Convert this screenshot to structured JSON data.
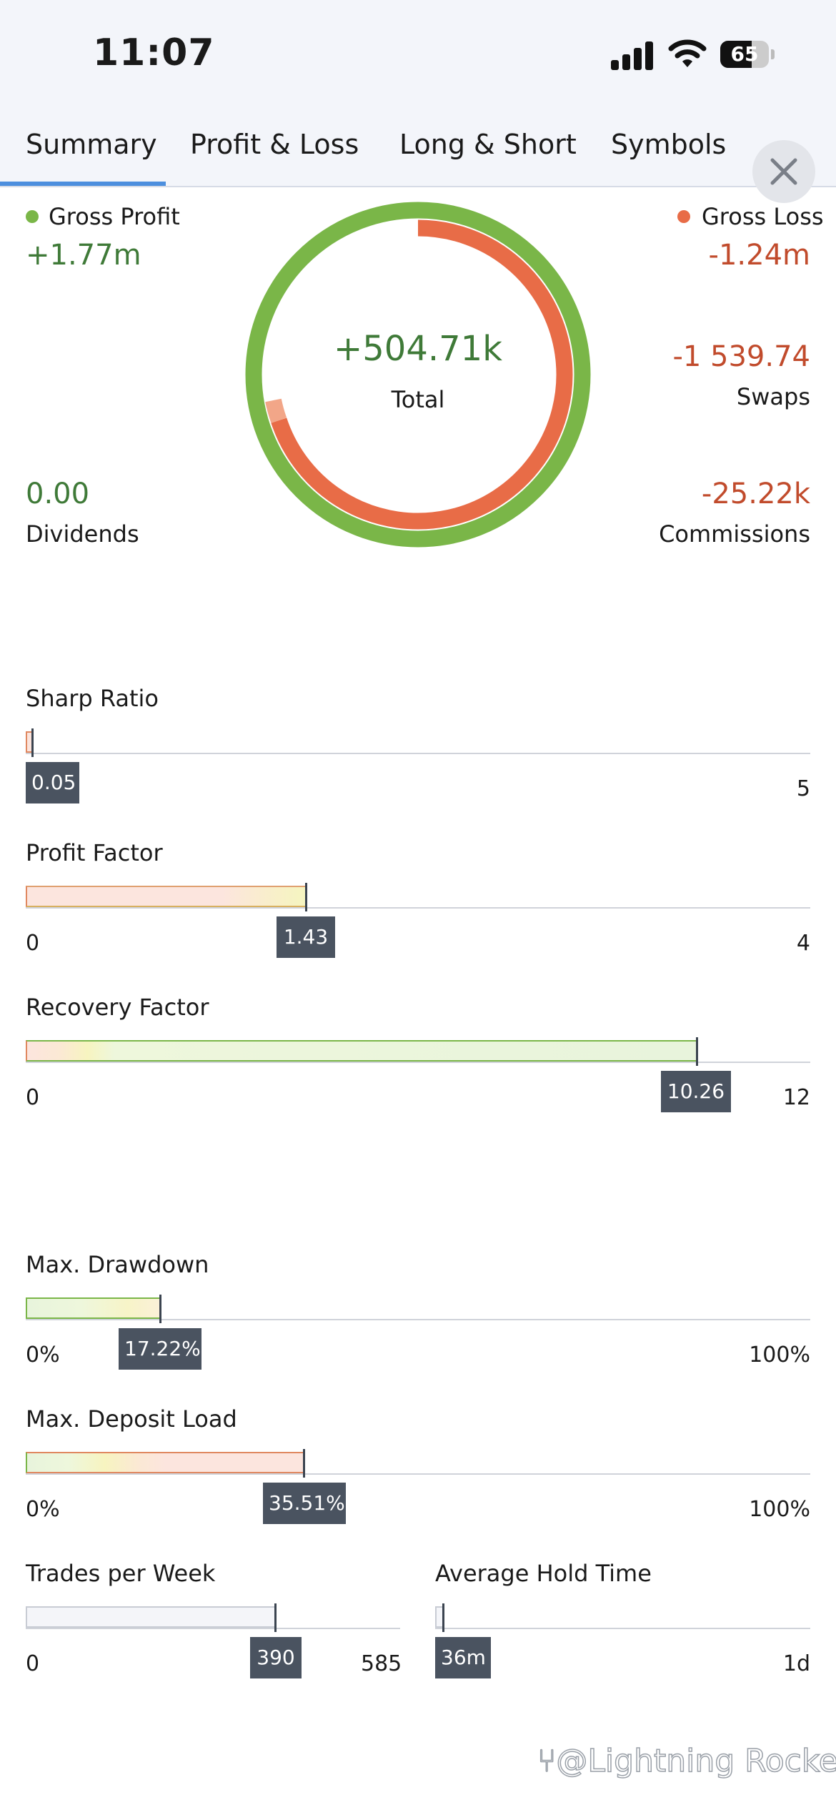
{
  "status_bar": {
    "time": "11:07",
    "battery": "65"
  },
  "tabs": [
    {
      "label": "Summary",
      "active": true
    },
    {
      "label": "Profit & Loss"
    },
    {
      "label": "Long & Short"
    },
    {
      "label": "Symbols"
    }
  ],
  "summary": {
    "gross_profit": {
      "label": "Gross Profit",
      "value": "+1.77m"
    },
    "gross_loss": {
      "label": "Gross Loss",
      "value": "-1.24m"
    },
    "total": {
      "label": "Total",
      "value": "+504.71k"
    },
    "swaps": {
      "label": "Swaps",
      "value": "-1 539.74"
    },
    "dividends": {
      "label": "Dividends",
      "value": "0.00"
    },
    "commissions": {
      "label": "Commissions",
      "value": "-25.22k"
    }
  },
  "metrics": {
    "sharp_ratio": {
      "label": "Sharp Ratio",
      "value": "0.05",
      "min": "",
      "max": "5"
    },
    "profit_factor": {
      "label": "Profit Factor",
      "value": "1.43",
      "min": "0",
      "max": "4"
    },
    "recovery_factor": {
      "label": "Recovery Factor",
      "value": "10.26",
      "min": "0",
      "max": "12"
    },
    "max_drawdown": {
      "label": "Max. Drawdown",
      "value": "17.22%",
      "min": "0%",
      "max": "100%"
    },
    "max_deposit_load": {
      "label": "Max. Deposit Load",
      "value": "35.51%",
      "min": "0%",
      "max": "100%"
    },
    "trades_per_week": {
      "label": "Trades per Week",
      "value": "390",
      "min": "0",
      "max": "585"
    },
    "average_hold_time": {
      "label": "Average Hold Time",
      "value": "36m",
      "min": "",
      "max": "1d"
    }
  },
  "colors": {
    "profit": "#7ab648",
    "loss": "#e86c47",
    "accent": "#4d8fde",
    "tag": "#4a5360"
  },
  "watermark": "⑂@Lightning Rocket"
}
